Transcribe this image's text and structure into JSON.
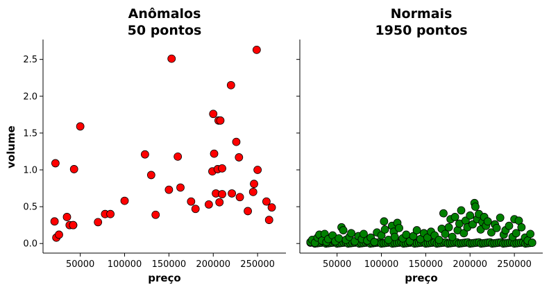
{
  "chart_data": [
    {
      "type": "scatter",
      "title_line1": "Anômalos",
      "title_line2": "50 pontos",
      "xlabel": "preço",
      "ylabel": "volume",
      "xlim": [
        8000,
        282000
      ],
      "ylim": [
        -0.13,
        2.77
      ],
      "xticks": [
        50000,
        100000,
        150000,
        200000,
        250000
      ],
      "xtick_labels": [
        "50000",
        "100000",
        "150000",
        "200000",
        "250000"
      ],
      "yticks": [
        0.0,
        0.5,
        1.0,
        1.5,
        2.0,
        2.5
      ],
      "ytick_labels": [
        "0.0",
        "0.5",
        "1.0",
        "1.5",
        "2.0",
        "2.5"
      ],
      "marker_color": "#ff0000",
      "edge_color": "#000000",
      "series": [
        {
          "x": [
            22000,
            21000,
            23000,
            26000,
            35000,
            38000,
            42000,
            43000,
            42000,
            50000,
            70000,
            78000,
            84000,
            100000,
            123000,
            130000,
            135000,
            150000,
            153000,
            160000,
            163000,
            175000,
            180000,
            195000,
            199000,
            200000,
            201000,
            203000,
            205000,
            206000,
            207000,
            208000,
            210000,
            210000,
            220000,
            221000,
            226000,
            229000,
            230000,
            239000,
            245000,
            246000,
            249000,
            250000,
            260000,
            263000,
            266000
          ],
          "y": [
            1.09,
            0.3,
            0.08,
            0.12,
            0.36,
            0.25,
            0.25,
            1.01,
            0.25,
            1.59,
            0.29,
            0.4,
            0.4,
            0.58,
            1.21,
            0.93,
            0.39,
            0.73,
            2.51,
            1.18,
            0.76,
            0.57,
            0.47,
            0.53,
            0.98,
            1.76,
            1.22,
            0.68,
            1.01,
            1.67,
            0.56,
            1.67,
            1.02,
            0.67,
            2.15,
            0.68,
            1.38,
            1.17,
            0.63,
            0.44,
            0.7,
            0.81,
            2.63,
            1.0,
            0.57,
            0.32,
            0.49
          ]
        }
      ]
    },
    {
      "type": "scatter",
      "title_line1": "Normais",
      "title_line2": "1950 pontos",
      "xlabel": "preço",
      "ylabel": "",
      "xlim": [
        8000,
        282000
      ],
      "ylim": [
        -0.13,
        2.77
      ],
      "xticks": [
        50000,
        100000,
        150000,
        200000,
        250000
      ],
      "xtick_labels": [
        "50000",
        "100000",
        "150000",
        "200000",
        "250000"
      ],
      "yticks": [
        0.0,
        0.5,
        1.0,
        1.5,
        2.0,
        2.5
      ],
      "marker_color": "#008000",
      "edge_color": "#000000",
      "series": [
        {
          "x": [
            20000,
            22000,
            25000,
            28000,
            30000,
            33000,
            36000,
            38000,
            40000,
            45000,
            48000,
            52000,
            55000,
            57000,
            60000,
            64000,
            66000,
            70000,
            74000,
            78000,
            80000,
            84000,
            88000,
            92000,
            95000,
            100000,
            103000,
            104000,
            108000,
            112000,
            114000,
            115000,
            118000,
            120000,
            124000,
            128000,
            132000,
            136000,
            140000,
            144000,
            148000,
            152000,
            156000,
            160000,
            165000,
            168000,
            170000,
            172000,
            176000,
            178000,
            180000,
            183000,
            186000,
            188000,
            190000,
            193000,
            195000,
            197000,
            200000,
            203000,
            205000,
            206000,
            208000,
            210000,
            212000,
            214000,
            216000,
            218000,
            220000,
            224000,
            228000,
            230000,
            234000,
            238000,
            240000,
            244000,
            248000,
            250000,
            252000,
            255000,
            258000,
            262000,
            265000,
            268000,
            270000
          ],
          "y": [
            0.02,
            0.05,
            0.01,
            0.08,
            0.12,
            0.04,
            0.13,
            0.02,
            0.06,
            0.11,
            0.03,
            0.07,
            0.22,
            0.18,
            0.05,
            0.09,
            0.14,
            0.03,
            0.1,
            0.06,
            0.13,
            0.04,
            0.08,
            0.02,
            0.15,
            0.11,
            0.3,
            0.19,
            0.05,
            0.24,
            0.16,
            0.09,
            0.28,
            0.21,
            0.07,
            0.12,
            0.03,
            0.1,
            0.18,
            0.06,
            0.14,
            0.08,
            0.16,
            0.11,
            0.05,
            0.2,
            0.41,
            0.13,
            0.22,
            0.33,
            0.09,
            0.36,
            0.18,
            0.27,
            0.45,
            0.14,
            0.31,
            0.22,
            0.38,
            0.26,
            0.55,
            0.5,
            0.33,
            0.4,
            0.19,
            0.29,
            0.36,
            0.24,
            0.3,
            0.15,
            0.26,
            0.21,
            0.35,
            0.12,
            0.18,
            0.24,
            0.09,
            0.33,
            0.14,
            0.31,
            0.22,
            0.08,
            0.04,
            0.13,
            0.01
          ]
        }
      ]
    }
  ]
}
